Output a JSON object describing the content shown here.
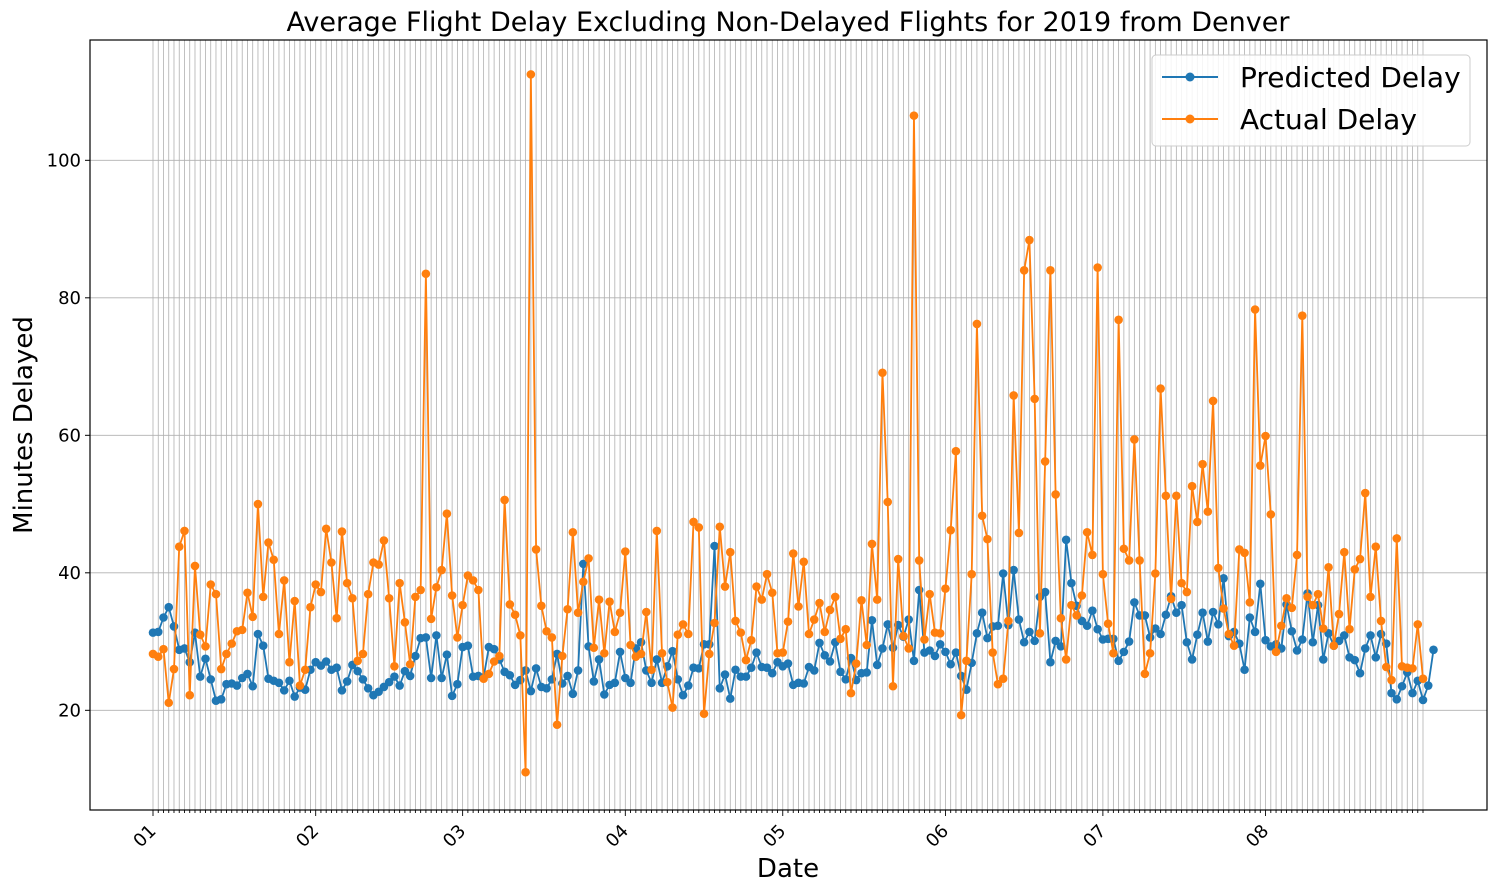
{
  "chart_data": {
    "type": "line",
    "title": "Average Flight Delay Excluding Non-Delayed Flights for 2019 from Denver",
    "xlabel": "Date",
    "ylabel": "Minutes Delayed",
    "x_start": "2019-01-01",
    "x_end": "2019-08-31",
    "x_tick_labels": [
      "01",
      "02",
      "03",
      "04",
      "05",
      "06",
      "07",
      "08"
    ],
    "y_ticks": [
      20,
      40,
      60,
      80,
      100
    ],
    "ylim": [
      5.5,
      117.5
    ],
    "grid": true,
    "legend_position": "top-right",
    "series": [
      {
        "name": "Predicted Delay",
        "color": "#1f77b4",
        "values": [
          31.3,
          31.4,
          33.5,
          35.0,
          32.2,
          28.8,
          29.0,
          27.0,
          31.3,
          24.9,
          27.5,
          24.5,
          21.4,
          21.6,
          23.8,
          23.9,
          23.6,
          24.7,
          25.3,
          23.5,
          31.1,
          29.4,
          24.6,
          24.3,
          24.0,
          22.9,
          24.3,
          22.0,
          23.3,
          23.0,
          25.9,
          27.0,
          26.5,
          27.1,
          25.9,
          26.2,
          22.9,
          24.2,
          26.6,
          25.7,
          24.5,
          23.2,
          22.2,
          22.7,
          23.4,
          24.1,
          24.9,
          23.6,
          25.7,
          25.0,
          27.9,
          30.5,
          30.6,
          24.7,
          30.9,
          24.7,
          28.1,
          22.1,
          23.8,
          29.2,
          29.4,
          24.9,
          25.0,
          24.8,
          29.2,
          28.9,
          27.4,
          25.6,
          25.1,
          23.7,
          24.4,
          25.8,
          22.8,
          26.1,
          23.4,
          23.2,
          24.5,
          28.2,
          23.9,
          25.0,
          22.4,
          25.8,
          41.3,
          29.3,
          24.2,
          27.4,
          22.3,
          23.7,
          24.0,
          28.5,
          24.7,
          24.0,
          29.0,
          29.9,
          25.8,
          24.0,
          27.4,
          24.0,
          26.4,
          28.6,
          24.5,
          22.2,
          23.6,
          26.2,
          26.1,
          29.6,
          29.6,
          43.9,
          23.2,
          25.2,
          21.7,
          25.9,
          24.9,
          24.9,
          26.2,
          28.4,
          26.3,
          26.2,
          25.4,
          27.0,
          26.4,
          26.8,
          23.7,
          24.0,
          23.9,
          26.3,
          25.8,
          29.8,
          28.0,
          27.1,
          29.9,
          25.6,
          24.5,
          27.6,
          24.4,
          25.4,
          25.5,
          33.1,
          26.6,
          29.0,
          32.5,
          29.1,
          32.4,
          30.7,
          33.2,
          27.2,
          37.5,
          28.4,
          28.7,
          27.9,
          29.6,
          28.5,
          26.7,
          28.4,
          25.0,
          23.0,
          26.9,
          31.2,
          34.2,
          30.5,
          32.2,
          32.3,
          39.9,
          32.4,
          40.4,
          33.2,
          29.9,
          31.4,
          30.1,
          36.5,
          37.2,
          27.0,
          30.1,
          29.3,
          44.8,
          38.5,
          35.2,
          33.0,
          32.3,
          34.5,
          31.8,
          30.3,
          30.4,
          30.4,
          27.2,
          28.5,
          30.0,
          35.7,
          33.8,
          33.8,
          30.6,
          31.9,
          31.1,
          33.9,
          36.6,
          34.2,
          35.3,
          29.9,
          27.4,
          31.0,
          34.2,
          30.0,
          34.3,
          32.5,
          39.2,
          30.8,
          31.4,
          29.7,
          25.9,
          33.5,
          31.4,
          38.4,
          30.2,
          29.3,
          29.6,
          29.0,
          35.4,
          31.5,
          28.7,
          30.3,
          37.0,
          29.9,
          35.3,
          27.4,
          31.2,
          29.4,
          30.1,
          30.9,
          27.7,
          27.3,
          25.4,
          29.0,
          30.9,
          27.7,
          31.1,
          29.7,
          22.5,
          21.6,
          23.5,
          25.5,
          22.5,
          24.3,
          21.5,
          23.6,
          28.8
        ]
      },
      {
        "name": "Actual Delay",
        "color": "#ff7f0e",
        "values": [
          28.2,
          27.8,
          28.9,
          21.1,
          26.0,
          43.8,
          46.1,
          22.2,
          41.0,
          31.0,
          29.3,
          38.3,
          36.9,
          26.0,
          28.2,
          29.7,
          31.5,
          31.7,
          37.1,
          33.6,
          50.0,
          36.5,
          44.4,
          41.9,
          31.1,
          38.9,
          27.0,
          35.9,
          23.6,
          25.9,
          35.0,
          38.3,
          37.2,
          46.4,
          41.5,
          33.4,
          46.0,
          38.5,
          36.3,
          27.2,
          28.2,
          36.9,
          41.5,
          41.2,
          44.7,
          36.3,
          26.4,
          38.5,
          32.8,
          26.7,
          36.5,
          37.5,
          83.5,
          33.3,
          37.9,
          40.4,
          48.6,
          36.7,
          30.6,
          35.3,
          39.6,
          38.9,
          37.5,
          24.6,
          25.3,
          27.1,
          27.9,
          50.6,
          35.4,
          33.9,
          30.9,
          11.0,
          112.5,
          43.4,
          35.2,
          31.5,
          30.6,
          17.9,
          27.9,
          34.7,
          45.9,
          34.2,
          38.7,
          42.1,
          29.1,
          36.1,
          28.3,
          35.8,
          31.4,
          34.2,
          43.1,
          29.5,
          27.8,
          28.2,
          34.3,
          25.9,
          46.1,
          28.3,
          24.1,
          20.4,
          31.0,
          32.5,
          31.1,
          47.4,
          46.6,
          19.5,
          28.2,
          32.7,
          46.7,
          38.0,
          43.0,
          33.0,
          31.3,
          27.3,
          30.2,
          38.0,
          36.1,
          39.8,
          37.1,
          28.3,
          28.4,
          32.9,
          42.8,
          35.1,
          41.6,
          31.1,
          33.2,
          35.6,
          31.4,
          34.6,
          36.5,
          30.4,
          31.8,
          22.5,
          26.8,
          36.0,
          29.5,
          44.2,
          36.1,
          69.1,
          50.3,
          23.5,
          42.0,
          30.8,
          29.0,
          106.5,
          41.8,
          30.3,
          36.9,
          31.3,
          31.2,
          37.7,
          46.2,
          57.7,
          19.3,
          27.2,
          39.8,
          76.2,
          48.3,
          44.9,
          28.4,
          23.8,
          24.6,
          33.0,
          65.8,
          45.8,
          84.0,
          88.4,
          65.3,
          31.2,
          56.2,
          84.0,
          51.4,
          33.4,
          27.4,
          35.3,
          33.8,
          36.7,
          45.9,
          42.6,
          84.4,
          39.8,
          32.6,
          28.3,
          76.8,
          43.5,
          41.8,
          59.4,
          41.8,
          25.3,
          28.3,
          39.9,
          66.8,
          51.2,
          36.2,
          51.2,
          38.5,
          37.2,
          52.6,
          47.4,
          55.8,
          48.9,
          65.0,
          40.7,
          34.8,
          31.1,
          29.4,
          43.4,
          42.9,
          35.7,
          78.3,
          55.6,
          59.9,
          48.5,
          28.5,
          32.3,
          36.3,
          34.9,
          42.6,
          77.4,
          36.5,
          35.3,
          36.9,
          31.9,
          40.8,
          29.4,
          34.0,
          43.0,
          31.8,
          40.5,
          42.0,
          51.6,
          36.5,
          43.8,
          33.0,
          26.3,
          24.4,
          45.0,
          26.4,
          26.2,
          26.1,
          32.5,
          24.6
        ]
      }
    ]
  }
}
